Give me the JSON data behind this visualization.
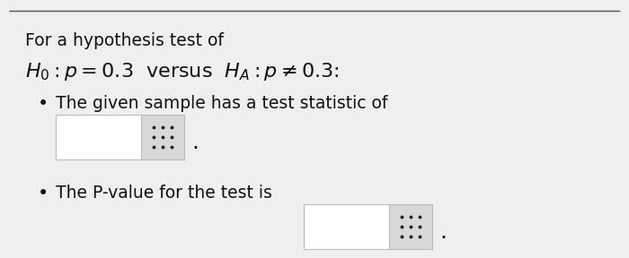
{
  "background_color": "#efefef",
  "top_line_color": "#555555",
  "text_color": "#111111",
  "line1": "For a hypothesis test of",
  "bullet1": "The given sample has a test statistic of",
  "bullet2": "The P-value for the test is",
  "box_fill": "#ffffff",
  "box_border": "#bbbbbb",
  "grid_fill": "#d8d8d8",
  "dot_color": "#222222",
  "period_color": "#111111",
  "font_size_text": 13.5,
  "font_size_math": 16,
  "fig_width": 7.0,
  "fig_height": 2.88,
  "dpi": 100
}
